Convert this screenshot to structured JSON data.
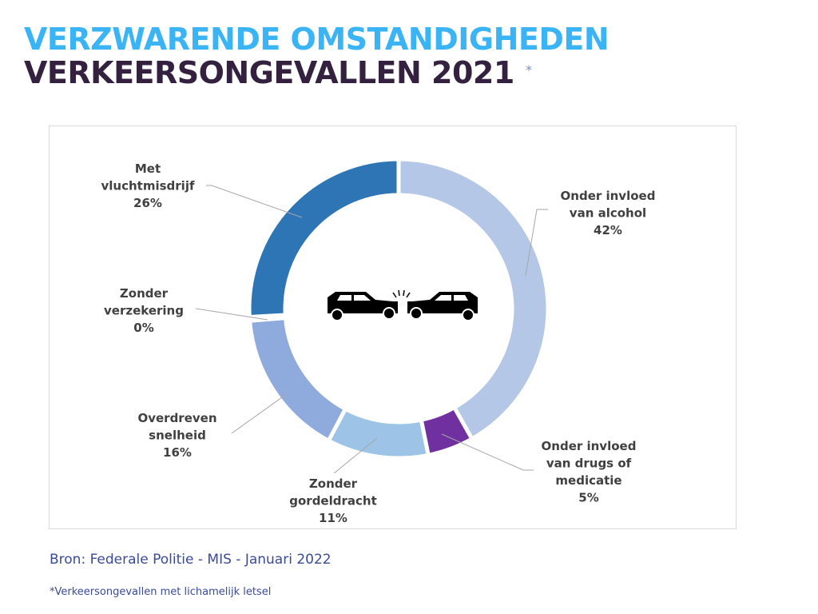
{
  "header": {
    "title_line1": "VERZWARENDE OMSTANDIGHEDEN",
    "title_line2": "VERKEERSONGEVALLEN 2021",
    "asterisk": "*",
    "color_line1": "#3ab4f5",
    "color_line2": "#33213f"
  },
  "footer": {
    "source": "Bron: Federale Politie - MIS - Januari 2022",
    "note": "*Verkeersongevallen met lichamelijk letsel"
  },
  "center_icon": "car-crash-icon",
  "chart_data": {
    "type": "pie",
    "subtype": "donut",
    "title": "Verzwarende omstandigheden verkeersongevallen 2021",
    "unit": "%",
    "slices": [
      {
        "label": "Onder invloed van alcohol",
        "value": 42,
        "display": "42%",
        "color": "#b4c7e7",
        "label_lines": [
          "Onder invloed",
          "van alcohol",
          "42%"
        ]
      },
      {
        "label": "Onder invloed van drugs of medicatie",
        "value": 5,
        "display": "5%",
        "color": "#7030a0",
        "label_lines": [
          "Onder invloed",
          "van drugs of",
          "medicatie",
          "5%"
        ]
      },
      {
        "label": "Zonder gordeldracht",
        "value": 11,
        "display": "11%",
        "color": "#9dc3e6",
        "label_lines": [
          "Zonder",
          "gordeldracht",
          "11%"
        ]
      },
      {
        "label": "Overdreven snelheid",
        "value": 16,
        "display": "16%",
        "color": "#8faadc",
        "label_lines": [
          "Overdreven",
          "snelheid",
          "16%"
        ]
      },
      {
        "label": "Zonder verzekering",
        "value": 0.4,
        "display": "0%",
        "color": "#d9e2f3",
        "label_lines": [
          "Zonder",
          "verzekering",
          "0%"
        ]
      },
      {
        "label": "Met vluchtmisdrijf",
        "value": 26,
        "display": "26%",
        "color": "#2e75b6",
        "label_lines": [
          "Met",
          "vluchtmisdrijf",
          "26%"
        ]
      }
    ],
    "legend": "none",
    "data_labels": "outside with leader lines"
  }
}
